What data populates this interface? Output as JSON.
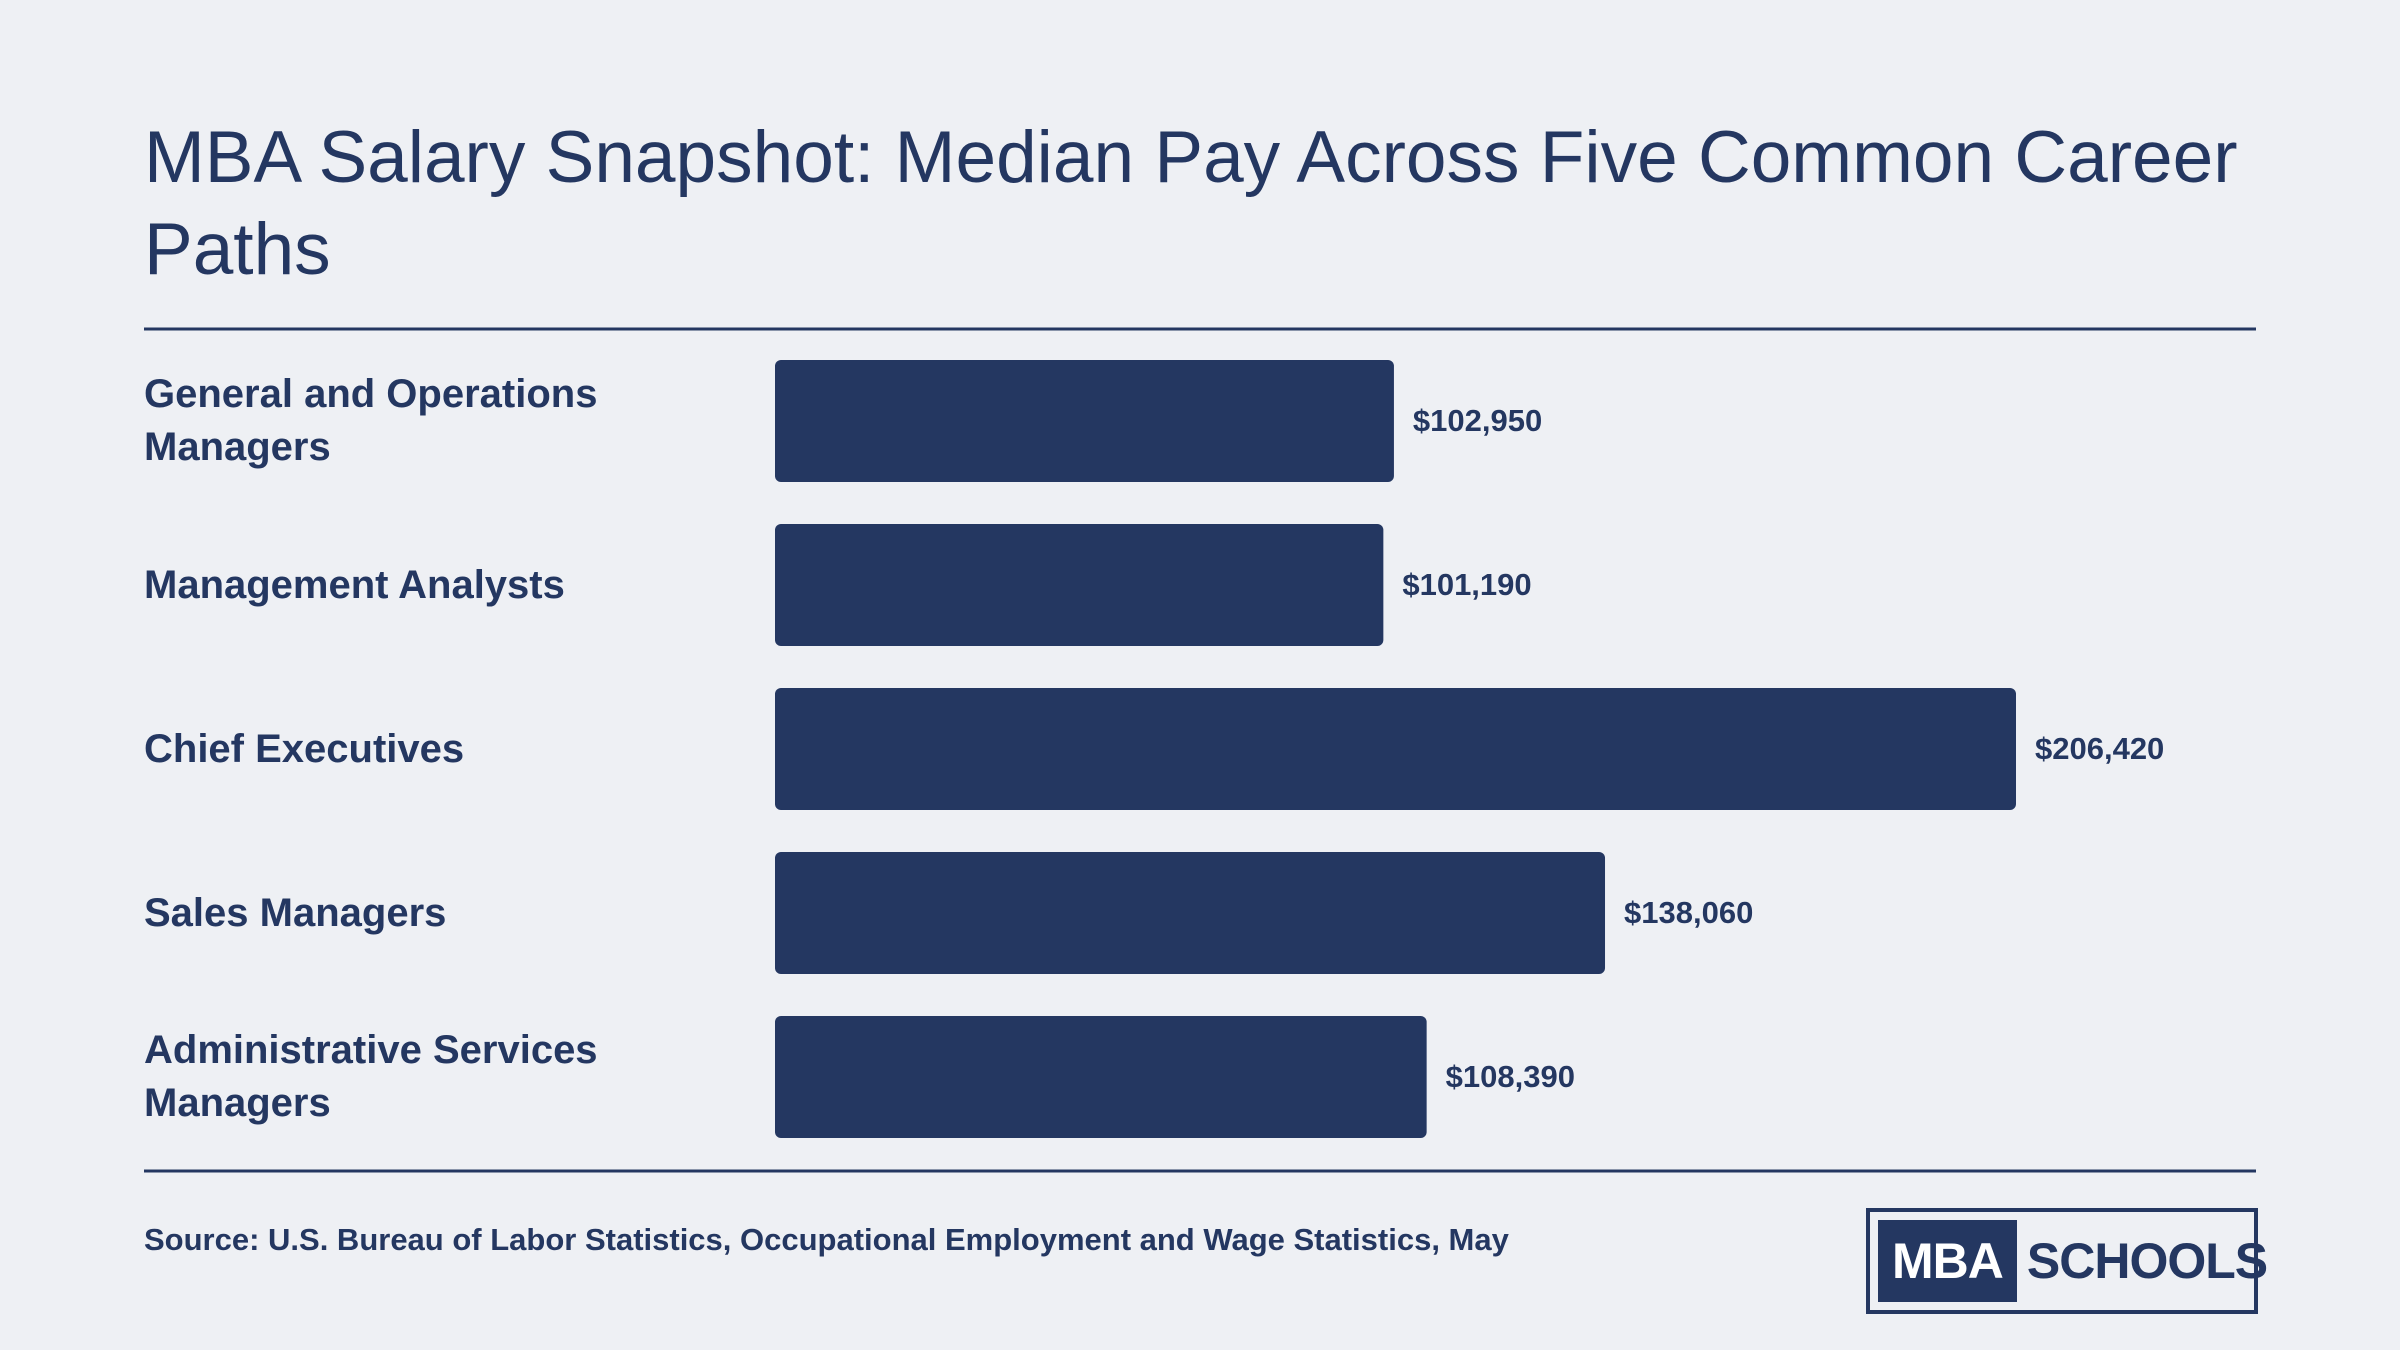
{
  "chart_data": {
    "type": "bar",
    "orientation": "horizontal",
    "title": "MBA Salary Snapshot: Median Pay Across Five Common Career Paths",
    "categories": [
      "General and Operations Managers",
      "Management Analysts",
      "Chief Executives",
      "Sales Managers",
      "Administrative Services Managers"
    ],
    "values": [
      102950,
      101190,
      206420,
      138060,
      108390
    ],
    "value_labels": [
      "$102,950",
      "$101,190",
      "$206,420",
      "$138,060",
      "$108,390"
    ],
    "color": "#243761",
    "source": "Source: U.S. Bureau of Labor Statistics, Occupational Employment and Wage Statistics, May"
  },
  "logo": {
    "left": "MBA",
    "right": "SCHOOLS"
  }
}
